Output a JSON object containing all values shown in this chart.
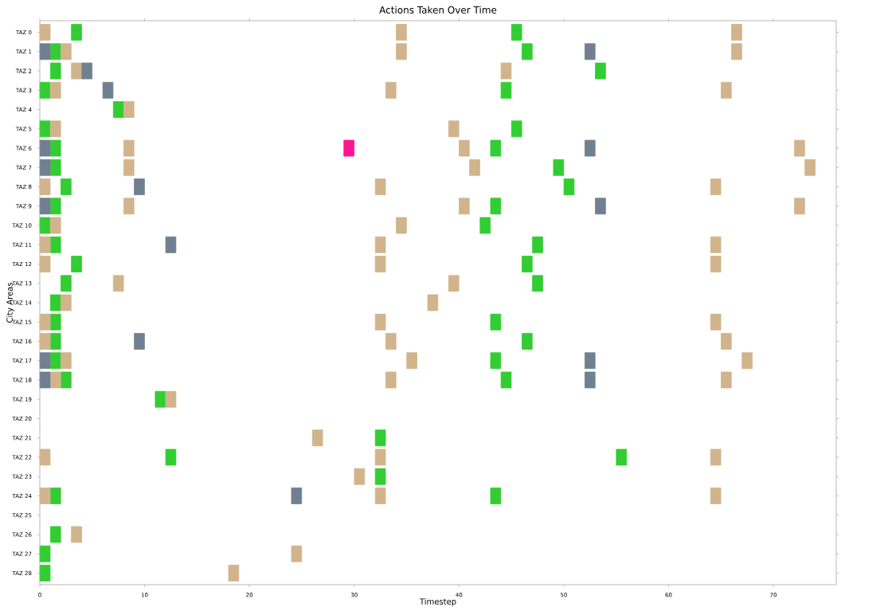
{
  "chart_data": {
    "type": "scatter",
    "orientation": "horizontal",
    "title": "Actions Taken Over Time",
    "xlabel": "Timestep",
    "ylabel": "City Areas",
    "xlim": [
      0,
      76
    ],
    "xticks": [
      0,
      10,
      20,
      30,
      40,
      50,
      60,
      70
    ],
    "categories": [
      "TAZ 0",
      "TAZ 1",
      "TAZ 2",
      "TAZ 3",
      "TAZ 4",
      "TAZ 5",
      "TAZ 6",
      "TAZ 7",
      "TAZ 8",
      "TAZ 9",
      "TAZ 10",
      "TAZ 11",
      "TAZ 12",
      "TAZ 13",
      "TAZ 14",
      "TAZ 15",
      "TAZ 16",
      "TAZ 17",
      "TAZ 18",
      "TAZ 19",
      "TAZ 20",
      "TAZ 21",
      "TAZ 22",
      "TAZ 23",
      "TAZ 24",
      "TAZ 25",
      "TAZ 26",
      "TAZ 27",
      "TAZ 28"
    ],
    "marker": "square",
    "series": [
      {
        "color": "#32cd32",
        "values": [
          3.5,
          45.5,
          1.5,
          46.5,
          1.5,
          53.5,
          0.5,
          44.5,
          7.5,
          0.5,
          45.5,
          1.5,
          43.5,
          1.5,
          49.5,
          2.5,
          50.5,
          1.5,
          43.5,
          0.5,
          42.5,
          1.5,
          47.5,
          3.5,
          46.5,
          2.5,
          47.5,
          1.5,
          1.5,
          43.5,
          1.5,
          46.5,
          1.5,
          43.5,
          2.5,
          44.5,
          11.5,
          32.5,
          12.5,
          55.5,
          32.5,
          1.5,
          43.5,
          1.5,
          0.5,
          0.5
        ],
        "x": [
          "TAZ 0",
          "TAZ 0",
          "TAZ 1",
          "TAZ 1",
          "TAZ 2",
          "TAZ 2",
          "TAZ 3",
          "TAZ 3",
          "TAZ 4",
          "TAZ 5",
          "TAZ 5",
          "TAZ 6",
          "TAZ 6",
          "TAZ 7",
          "TAZ 7",
          "TAZ 8",
          "TAZ 8",
          "TAZ 9",
          "TAZ 9",
          "TAZ 10",
          "TAZ 10",
          "TAZ 11",
          "TAZ 11",
          "TAZ 12",
          "TAZ 12",
          "TAZ 13",
          "TAZ 13",
          "TAZ 14",
          "TAZ 15",
          "TAZ 15",
          "TAZ 16",
          "TAZ 16",
          "TAZ 17",
          "TAZ 17",
          "TAZ 18",
          "TAZ 18",
          "TAZ 19",
          "TAZ 21",
          "TAZ 22",
          "TAZ 22",
          "TAZ 23",
          "TAZ 24",
          "TAZ 24",
          "TAZ 26",
          "TAZ 27",
          "TAZ 28"
        ]
      },
      {
        "color": "#d2b48c",
        "values": [
          0.5,
          34.5,
          66.5,
          2.5,
          34.5,
          66.5,
          3.5,
          44.5,
          1.5,
          33.5,
          65.5,
          8.5,
          1.5,
          39.5,
          8.5,
          40.5,
          72.5,
          8.5,
          41.5,
          73.5,
          0.5,
          32.5,
          64.5,
          8.5,
          40.5,
          72.5,
          1.5,
          34.5,
          0.5,
          32.5,
          64.5,
          0.5,
          32.5,
          64.5,
          7.5,
          39.5,
          2.5,
          37.5,
          0.5,
          32.5,
          64.5,
          0.5,
          33.5,
          65.5,
          2.5,
          35.5,
          67.5,
          1.5,
          33.5,
          65.5,
          12.5,
          26.5,
          0.5,
          32.5,
          64.5,
          30.5,
          0.5,
          32.5,
          64.5,
          3.5,
          24.5,
          18.5
        ],
        "x": [
          "TAZ 0",
          "TAZ 0",
          "TAZ 0",
          "TAZ 1",
          "TAZ 1",
          "TAZ 1",
          "TAZ 2",
          "TAZ 2",
          "TAZ 3",
          "TAZ 3",
          "TAZ 3",
          "TAZ 4",
          "TAZ 5",
          "TAZ 5",
          "TAZ 6",
          "TAZ 6",
          "TAZ 6",
          "TAZ 7",
          "TAZ 7",
          "TAZ 7",
          "TAZ 8",
          "TAZ 8",
          "TAZ 8",
          "TAZ 9",
          "TAZ 9",
          "TAZ 9",
          "TAZ 10",
          "TAZ 10",
          "TAZ 11",
          "TAZ 11",
          "TAZ 11",
          "TAZ 12",
          "TAZ 12",
          "TAZ 12",
          "TAZ 13",
          "TAZ 13",
          "TAZ 14",
          "TAZ 14",
          "TAZ 15",
          "TAZ 15",
          "TAZ 15",
          "TAZ 16",
          "TAZ 16",
          "TAZ 16",
          "TAZ 17",
          "TAZ 17",
          "TAZ 17",
          "TAZ 18",
          "TAZ 18",
          "TAZ 18",
          "TAZ 19",
          "TAZ 21",
          "TAZ 22",
          "TAZ 22",
          "TAZ 22",
          "TAZ 23",
          "TAZ 24",
          "TAZ 24",
          "TAZ 24",
          "TAZ 26",
          "TAZ 27",
          "TAZ 28"
        ]
      },
      {
        "color": "#708090",
        "values": [
          0.5,
          52.5,
          4.5,
          6.5,
          0.5,
          52.5,
          0.5,
          9.5,
          0.5,
          53.5,
          12.5,
          9.5,
          0.5,
          52.5,
          0.5,
          52.5,
          24.5
        ],
        "x": [
          "TAZ 1",
          "TAZ 1",
          "TAZ 2",
          "TAZ 3",
          "TAZ 6",
          "TAZ 6",
          "TAZ 7",
          "TAZ 8",
          "TAZ 9",
          "TAZ 9",
          "TAZ 11",
          "TAZ 16",
          "TAZ 17",
          "TAZ 17",
          "TAZ 18",
          "TAZ 18",
          "TAZ 24"
        ]
      },
      {
        "color": "#ff1493",
        "values": [
          29.5
        ],
        "x": [
          "TAZ 6"
        ]
      }
    ]
  }
}
